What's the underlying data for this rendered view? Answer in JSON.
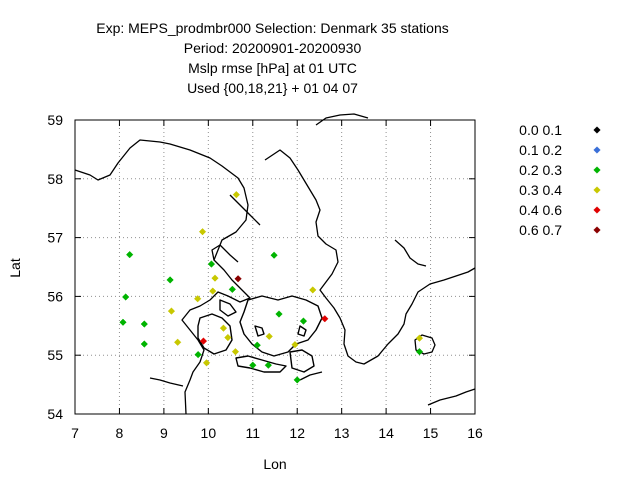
{
  "title": {
    "line1": "Exp: MEPS_prodmbr000   Selection: Denmark     35 stations",
    "line2": "Period: 20200901-20200930",
    "line3": "Mslp rmse [hPa] at  01 UTC",
    "line4": "Used {00,18,21} + 01 04 07"
  },
  "chart_data": {
    "type": "scatter",
    "xlabel": "Lon",
    "ylabel": "Lat",
    "xlim": [
      7,
      16
    ],
    "ylim": [
      54,
      59
    ],
    "xticks": [
      7,
      8,
      9,
      10,
      11,
      12,
      13,
      14,
      15,
      16
    ],
    "yticks": [
      54,
      55,
      56,
      57,
      58,
      59
    ],
    "grid": true,
    "legend_position": "right",
    "classes": [
      {
        "label": "0.0 0.1",
        "color": "#000000"
      },
      {
        "label": "0.1 0.2",
        "color": "#3a6fd8"
      },
      {
        "label": "0.2 0.3",
        "color": "#00b400"
      },
      {
        "label": "0.3 0.4",
        "color": "#c8c800"
      },
      {
        "label": "0.4 0.6",
        "color": "#e00000"
      },
      {
        "label": "0.6 0.7",
        "color": "#8b0000"
      }
    ],
    "points": [
      {
        "lon": 8.23,
        "lat": 56.71,
        "cls": 2
      },
      {
        "lon": 8.14,
        "lat": 55.99,
        "cls": 2
      },
      {
        "lon": 8.08,
        "lat": 55.56,
        "cls": 2
      },
      {
        "lon": 8.56,
        "lat": 55.53,
        "cls": 2
      },
      {
        "lon": 8.56,
        "lat": 55.19,
        "cls": 2
      },
      {
        "lon": 9.14,
        "lat": 56.28,
        "cls": 2
      },
      {
        "lon": 9.17,
        "lat": 55.75,
        "cls": 3
      },
      {
        "lon": 9.31,
        "lat": 55.22,
        "cls": 3
      },
      {
        "lon": 9.76,
        "lat": 55.96,
        "cls": 3
      },
      {
        "lon": 9.87,
        "lat": 57.1,
        "cls": 3
      },
      {
        "lon": 10.63,
        "lat": 57.73,
        "cls": 3
      },
      {
        "lon": 10.07,
        "lat": 56.55,
        "cls": 2
      },
      {
        "lon": 10.15,
        "lat": 56.31,
        "cls": 3
      },
      {
        "lon": 10.54,
        "lat": 56.12,
        "cls": 2
      },
      {
        "lon": 10.67,
        "lat": 56.3,
        "cls": 5
      },
      {
        "lon": 10.1,
        "lat": 56.09,
        "cls": 3
      },
      {
        "lon": 11.48,
        "lat": 56.7,
        "cls": 2
      },
      {
        "lon": 9.89,
        "lat": 55.24,
        "cls": 4
      },
      {
        "lon": 9.77,
        "lat": 55.01,
        "cls": 2
      },
      {
        "lon": 9.96,
        "lat": 54.87,
        "cls": 3
      },
      {
        "lon": 10.34,
        "lat": 55.46,
        "cls": 3
      },
      {
        "lon": 10.44,
        "lat": 55.3,
        "cls": 3
      },
      {
        "lon": 10.61,
        "lat": 55.06,
        "cls": 3
      },
      {
        "lon": 11.0,
        "lat": 54.83,
        "cls": 2
      },
      {
        "lon": 11.1,
        "lat": 55.17,
        "cls": 2
      },
      {
        "lon": 11.37,
        "lat": 55.32,
        "cls": 3
      },
      {
        "lon": 11.35,
        "lat": 54.83,
        "cls": 2
      },
      {
        "lon": 11.59,
        "lat": 55.7,
        "cls": 2
      },
      {
        "lon": 11.95,
        "lat": 55.18,
        "cls": 3
      },
      {
        "lon": 12.0,
        "lat": 54.58,
        "cls": 2
      },
      {
        "lon": 12.14,
        "lat": 55.58,
        "cls": 2
      },
      {
        "lon": 12.35,
        "lat": 56.11,
        "cls": 3
      },
      {
        "lon": 12.62,
        "lat": 55.62,
        "cls": 4
      },
      {
        "lon": 14.75,
        "lat": 55.29,
        "cls": 3
      },
      {
        "lon": 14.75,
        "lat": 55.06,
        "cls": 2
      }
    ]
  }
}
